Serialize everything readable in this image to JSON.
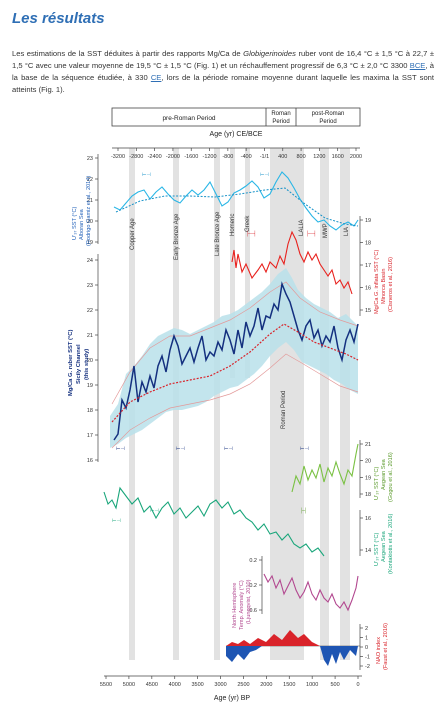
{
  "section": {
    "heading": "Les résultats"
  },
  "paragraph": {
    "part1": "Les estimations de la SST déduites à partir des rapports Mg/Ca de ",
    "species": "Globigerinoides",
    "part2": " ruber vont de 16,4 °C ± 1,5 °C à 22,7 ± 1,5 °C avec une valeur moyenne de 19,5 °C ± 1,5 °C (Fig. 1) et un réchauffement progressif de 6,3 °C ± 2,0 °C 3300 ",
    "abbr1": "BCE",
    "part3": ", à la base de la séquence étudiée, à 330 ",
    "abbr2": "CE",
    "part4": ", lors de la période romaine moyenne durant laquelle les maxima la SST sont atteints (Fig. 1)."
  },
  "figure": {
    "periods": {
      "pre_roman": "pre-Roman Period",
      "roman_line1": "Roman",
      "roman_line2": "Period",
      "post_roman_line1": "post-Roman",
      "post_roman_line2": "Period"
    },
    "top_axis": {
      "title": "Age (yr) CE/BCE",
      "ticks": [
        "-3200",
        "-2800",
        "-2400",
        "-2000",
        "-1600",
        "-1200",
        "-800",
        "-400",
        "-1/1",
        "400",
        "800",
        "1200",
        "1600",
        "2000"
      ]
    },
    "bottom_axis": {
      "title": "Age (yr) BP",
      "ticks": [
        "5500",
        "5000",
        "4500",
        "4000",
        "3500",
        "3000",
        "2500",
        "2000",
        "1500",
        "1000",
        "500",
        "0"
      ]
    },
    "event_labels": [
      "Copper Age",
      "Early Bronze Age",
      "Late Bronze Age",
      "Homeric",
      "Greek",
      "Roman Period",
      "LALIA",
      "MWP",
      "LIA"
    ],
    "panels": {
      "alboran": {
        "label_lines": [
          "U’₃₇ SST (°C)",
          "Alboran Sea",
          "(Rodrigo Gamiz et al., 2014)"
        ],
        "ticks": [
          "23",
          "22",
          "21",
          "20",
          "19"
        ],
        "color": "#29b6e6"
      },
      "minorca": {
        "label_lines": [
          "Mg/Ca G. inflata SST (°C)",
          "Minorca Basin",
          "(Cisneros et al., 2016)"
        ],
        "ticks": [
          "19",
          "18",
          "17",
          "16",
          "15"
        ],
        "color": "#e8211d"
      },
      "sicily": {
        "label_lines": [
          "Mg/Ca G. ruber SST (°C)",
          "Sicily Channel",
          "(this study)"
        ],
        "ticks": [
          "24",
          "23",
          "22",
          "21",
          "20",
          "19",
          "18",
          "17",
          "16"
        ],
        "color": "#14307f",
        "band_color": "#b9e1ea"
      },
      "aegean1": {
        "label_lines": [
          "U’₃₇ SST (°C)",
          "Aegean Sea",
          "(Gogou et al., 2016)"
        ],
        "ticks": [
          "21",
          "20",
          "19",
          "18"
        ],
        "color": "#7ac143"
      },
      "aegean2": {
        "label_lines": [
          "U’₃₇ SST (°C)",
          "Aegean Sea",
          "(Kontakiotis et al., 2016)"
        ],
        "ticks": [
          "16",
          "14"
        ],
        "color": "#1aa67b"
      },
      "nh": {
        "label_lines": [
          "North Hemisphere",
          "Temp. Anomaly (°C)",
          "(Ljungqvist, 2010)"
        ],
        "ticks": [
          "0.2",
          "-0.2",
          "-0.6"
        ],
        "color": "#b2478f"
      },
      "nao": {
        "label_lines": [
          "NAO index",
          "(Faust et al., 2016)"
        ],
        "ticks": [
          "2",
          "1",
          "0",
          "-1",
          "-2"
        ],
        "pos_color": "#d9232a",
        "neg_color": "#1e55b3"
      }
    }
  }
}
